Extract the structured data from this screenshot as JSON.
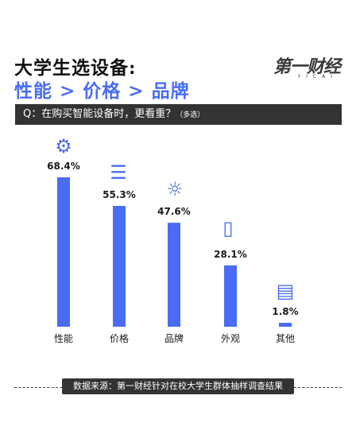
{
  "header": {
    "title": "大学生选设备:",
    "subtitle": "性能 > 价格 > 品牌",
    "logo": "第一财经",
    "logo_sub": "YICAI"
  },
  "question": {
    "text": "Q：在购买智能设备时，更看重？",
    "note": "（多选）"
  },
  "icons": [
    "gear-head-icon",
    "coin-stack-icon",
    "lightbulb-icon",
    "phone-icon",
    "document-icon"
  ],
  "colors": {
    "bar": "#4a6cf4",
    "dark": "#333333"
  },
  "chart_data": {
    "type": "bar",
    "categories": [
      "性能",
      "价格",
      "品牌",
      "外观",
      "其他"
    ],
    "values": [
      68.4,
      55.3,
      47.6,
      28.1,
      1.8
    ],
    "value_labels": [
      "68.4%",
      "55.3%",
      "47.6%",
      "28.1%",
      "1.8%"
    ],
    "title": "性能 > 价格 > 品牌",
    "xlabel": "",
    "ylabel": "",
    "ylim": [
      0,
      70
    ],
    "grid": false,
    "legend": "none"
  },
  "footer": {
    "source": "数据来源：第一财经针对在校大学生群体抽样调查结果"
  }
}
